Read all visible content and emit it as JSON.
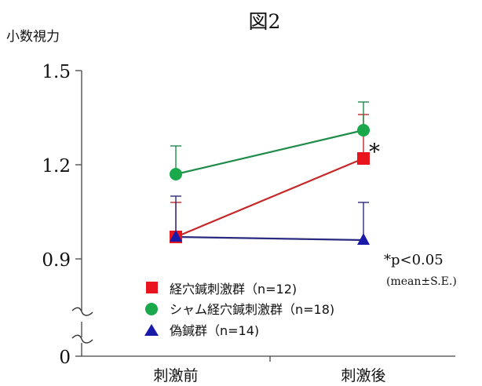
{
  "chart_data": {
    "type": "line",
    "title": "図2",
    "ylabel": "小数視力",
    "categories": [
      "刺激前",
      "刺激後"
    ],
    "yticks": [
      "0",
      "0.9",
      "1.2",
      "1.5"
    ],
    "ylim": [
      0.9,
      1.5
    ],
    "y_axis_break": true,
    "grid": false,
    "legend_position": "center-right",
    "series": [
      {
        "name": "経穴鍼刺激群（n=12)",
        "marker": "square",
        "color": "#e8141e",
        "line_color": "#c62828",
        "values": [
          0.97,
          1.22
        ],
        "se": [
          0.11,
          0.14
        ]
      },
      {
        "name": "シャム経穴鍼刺激群（n=18)",
        "marker": "circle",
        "color": "#19a84a",
        "line_color": "#1f8c4a",
        "values": [
          1.17,
          1.31
        ],
        "se": [
          0.09,
          0.09
        ]
      },
      {
        "name": "偽鍼群（n=14)",
        "marker": "triangle",
        "color": "#1a1aa8",
        "line_color": "#2a2a7e",
        "values": [
          0.97,
          0.96
        ],
        "se": [
          0.13,
          0.12
        ]
      }
    ],
    "annotations": {
      "significance_marker": "*",
      "p_value": "*p<0.05",
      "stat_note": "(mean±S.E.)"
    }
  }
}
